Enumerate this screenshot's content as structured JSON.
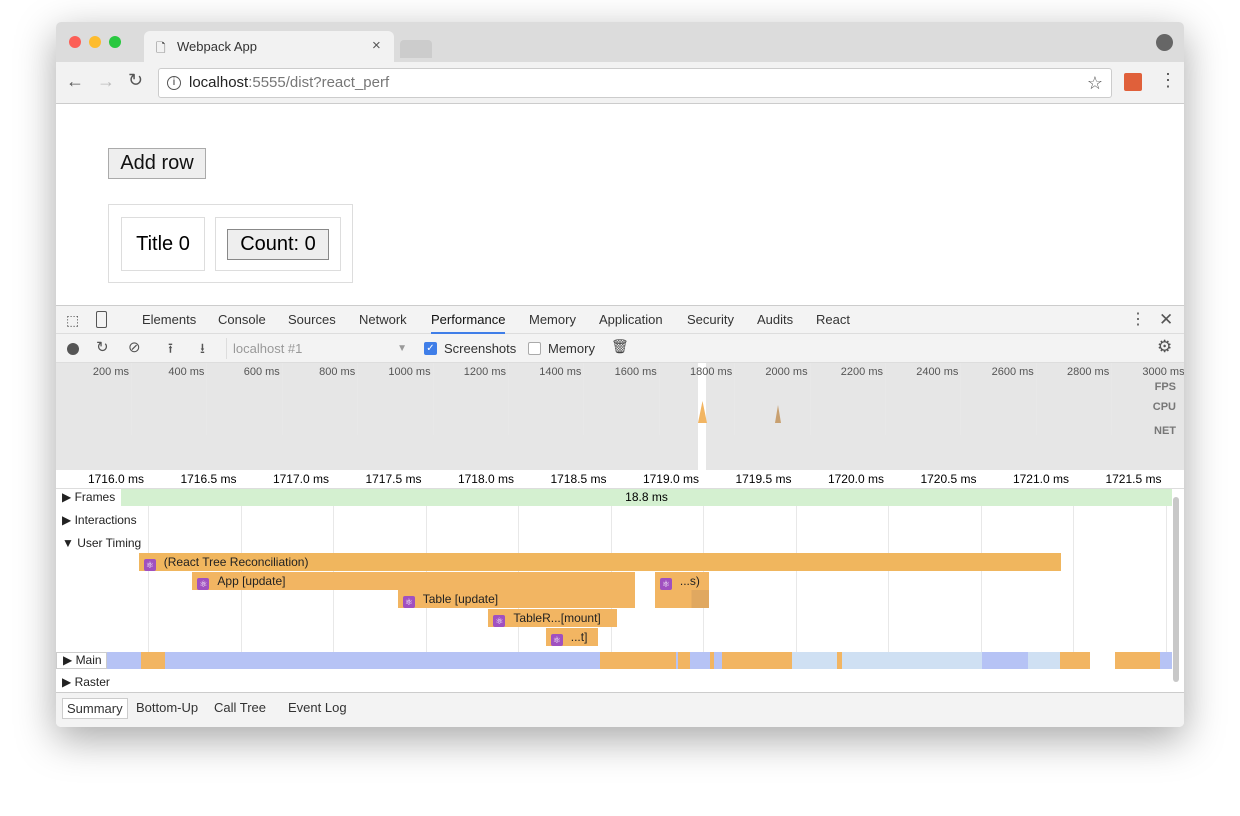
{
  "browser": {
    "tab_title": "Webpack App",
    "url_host": "localhost",
    "url_rest": ":5555/dist?react_perf"
  },
  "page": {
    "add_row": "Add row",
    "title_cell": "Title 0",
    "count_button": "Count: 0"
  },
  "devtools": {
    "tabs": [
      "Elements",
      "Console",
      "Sources",
      "Network",
      "Performance",
      "Memory",
      "Application",
      "Security",
      "Audits",
      "React"
    ],
    "active_tab": "Performance",
    "toolbar": {
      "profile_select": "localhost #1",
      "screenshots_label": "Screenshots",
      "screenshots_checked": true,
      "memory_label": "Memory",
      "memory_checked": false
    },
    "overview": {
      "ticks": [
        "200 ms",
        "400 ms",
        "600 ms",
        "800 ms",
        "1000 ms",
        "1200 ms",
        "1400 ms",
        "1600 ms",
        "1800 ms",
        "2000 ms",
        "2200 ms",
        "2400 ms",
        "2600 ms",
        "2800 ms",
        "3000 ms"
      ],
      "lanes": [
        "FPS",
        "CPU",
        "NET"
      ]
    },
    "ruler": [
      "1716.0 ms",
      "1716.5 ms",
      "1717.0 ms",
      "1717.5 ms",
      "1718.0 ms",
      "1718.5 ms",
      "1719.0 ms",
      "1719.5 ms",
      "1720.0 ms",
      "1720.5 ms",
      "1721.0 ms",
      "1721.5 ms"
    ],
    "tracks": {
      "frames": "Frames",
      "frame_duration": "18.8 ms",
      "interactions": "Interactions",
      "user_timing": "User Timing",
      "main": "Main",
      "raster": "Raster"
    },
    "user_timing": [
      {
        "label": "(React Tree Reconciliation)",
        "start_ms": 1715.95,
        "end_ms": 1720.94,
        "depth": 0
      },
      {
        "label": "App [update]",
        "start_ms": 1716.24,
        "end_ms": 1718.64,
        "depth": 1
      },
      {
        "label": "...s)",
        "start_ms": 1718.74,
        "end_ms": 1719.04,
        "depth": 1
      },
      {
        "label": "Table [update]",
        "start_ms": 1717.35,
        "end_ms": 1718.64,
        "depth": 2
      },
      {
        "label": "",
        "start_ms": 1718.74,
        "end_ms": 1719.04,
        "depth": 2
      },
      {
        "label": "TableR...[mount]",
        "start_ms": 1717.84,
        "end_ms": 1718.54,
        "depth": 3
      },
      {
        "label": "...t]",
        "start_ms": 1718.15,
        "end_ms": 1718.44,
        "depth": 4
      }
    ],
    "bottom_tabs": [
      "Summary",
      "Bottom-Up",
      "Call Tree",
      "Event Log"
    ],
    "active_bottom_tab": "Summary"
  },
  "colors": {
    "scripting": "#f2b562",
    "rendering": "#b6c3f5",
    "frames": "#d4f0d0",
    "accent": "#3f7ee8"
  }
}
